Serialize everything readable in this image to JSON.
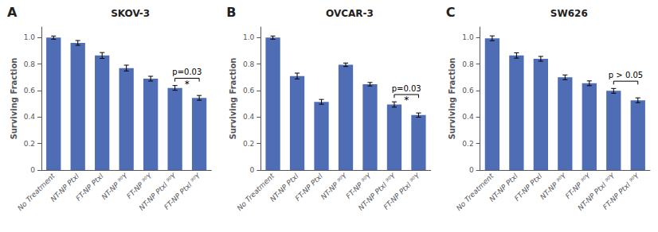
{
  "chart_data": [
    {
      "type": "bar",
      "label": "A",
      "title": "SKOV-3",
      "ylabel": "Surviving Fraction",
      "categories": [
        "No Treatment",
        "NT-NP Ptxl",
        "FT-NP Ptxl",
        "NT-NP ⁹⁰Y",
        "FT-NP ⁹⁰Y",
        "NT-NP Ptxl ⁹⁰Y",
        "FT-NP Ptxl ⁹⁰Y"
      ],
      "values": [
        1.0,
        0.96,
        0.865,
        0.77,
        0.69,
        0.62,
        0.545
      ],
      "errors": [
        0.012,
        0.018,
        0.022,
        0.022,
        0.018,
        0.018,
        0.018
      ],
      "color": "#4f6db5",
      "ylim": [
        0,
        1.08
      ],
      "yticks": [
        0,
        0.2,
        0.4,
        0.6,
        0.8,
        {
          "value": 1.0,
          "label": "1.0"
        }
      ],
      "grid": false,
      "annotations": [
        {
          "text": "p=0.03",
          "between": [
            "NT-NP Ptxl ⁹⁰Y",
            "FT-NP Ptxl ⁹⁰Y"
          ]
        },
        {
          "text": "*",
          "between": [
            "NT-NP Ptxl ⁹⁰Y",
            "FT-NP Ptxl ⁹⁰Y"
          ]
        }
      ]
    },
    {
      "type": "bar",
      "label": "B",
      "title": "OVCAR-3",
      "ylabel": "Surviving Fraction",
      "categories": [
        "No Treatment",
        "NT-NP Ptxl",
        "FT-NP Ptxl",
        "NT-NP ⁹⁰Y",
        "FT-NP ⁹⁰Y",
        "NT-NP Ptxl ⁹⁰Y",
        "FT-NP Ptxl ⁹⁰Y"
      ],
      "values": [
        1.0,
        0.71,
        0.515,
        0.795,
        0.648,
        0.495,
        0.415
      ],
      "errors": [
        0.012,
        0.022,
        0.018,
        0.013,
        0.013,
        0.02,
        0.016
      ],
      "color": "#4f6db5",
      "ylim": [
        0,
        1.08
      ],
      "yticks": [
        0,
        0.2,
        0.4,
        0.6,
        0.8,
        {
          "value": 1.0,
          "label": "1.0"
        }
      ],
      "grid": false,
      "annotations": [
        {
          "text": "p=0.03",
          "between": [
            "NT-NP Ptxl ⁹⁰Y",
            "FT-NP Ptxl ⁹⁰Y"
          ]
        },
        {
          "text": "*",
          "between": [
            "NT-NP Ptxl ⁹⁰Y",
            "FT-NP Ptxl ⁹⁰Y"
          ]
        }
      ]
    },
    {
      "type": "bar",
      "label": "C",
      "title": "SW626",
      "ylabel": "Surviving Fraction",
      "categories": [
        "No Treatment",
        "NT-NP Ptxl",
        "FT-NP Ptxl",
        "NT-NP ⁹⁰Y",
        "FT-NP ⁹⁰Y",
        "NT-NP Ptxl ⁹⁰Y",
        "FT-NP Ptxl ⁹⁰Y"
      ],
      "values": [
        0.995,
        0.865,
        0.84,
        0.7,
        0.655,
        0.598,
        0.527
      ],
      "errors": [
        0.018,
        0.02,
        0.018,
        0.018,
        0.018,
        0.018,
        0.018
      ],
      "color": "#4f6db5",
      "ylim": [
        0,
        1.08
      ],
      "yticks": [
        0,
        0.2,
        0.4,
        0.6,
        0.8,
        {
          "value": 1.0,
          "label": "1.0"
        }
      ],
      "grid": false,
      "annotations": [
        {
          "text": "p > 0.05",
          "between": [
            "NT-NP Ptxl ⁹⁰Y",
            "FT-NP Ptxl ⁹⁰Y"
          ]
        }
      ]
    }
  ]
}
